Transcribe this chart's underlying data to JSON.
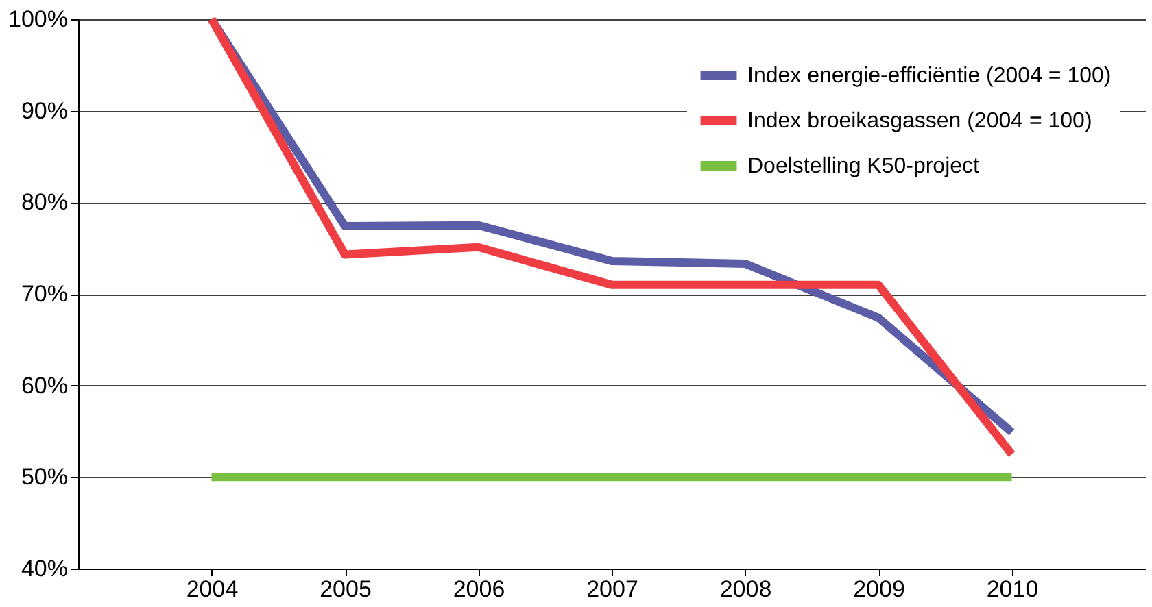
{
  "chart_data": {
    "type": "line",
    "categories": [
      "2004",
      "2005",
      "2006",
      "2007",
      "2008",
      "2009",
      "2010"
    ],
    "series": [
      {
        "name": "Index energie-efficiëntie (2004 = 100)",
        "color": "#5b5ea6",
        "values": [
          100,
          77.4,
          77.5,
          73.6,
          73.3,
          67.4,
          54.9
        ]
      },
      {
        "name": "Index broeikasgassen (2004 = 100)",
        "color": "#ee3e44",
        "values": [
          100,
          74.3,
          75.1,
          71.0,
          71.0,
          71.0,
          52.5
        ]
      },
      {
        "name": "Doelstelling K50-project",
        "color": "#7ac143",
        "values": [
          50,
          50,
          50,
          50,
          50,
          50,
          50
        ]
      }
    ],
    "ylim": [
      40,
      100
    ],
    "yticks": [
      {
        "value": 40,
        "label": "40%"
      },
      {
        "value": 50,
        "label": "50%"
      },
      {
        "value": 60,
        "label": "60%"
      },
      {
        "value": 70,
        "label": "70%"
      },
      {
        "value": 80,
        "label": "80%"
      },
      {
        "value": 90,
        "label": "90%"
      },
      {
        "value": 100,
        "label": "100%"
      }
    ],
    "grid": "y",
    "legend": "top right",
    "marker": "none",
    "line_style": "solid"
  }
}
